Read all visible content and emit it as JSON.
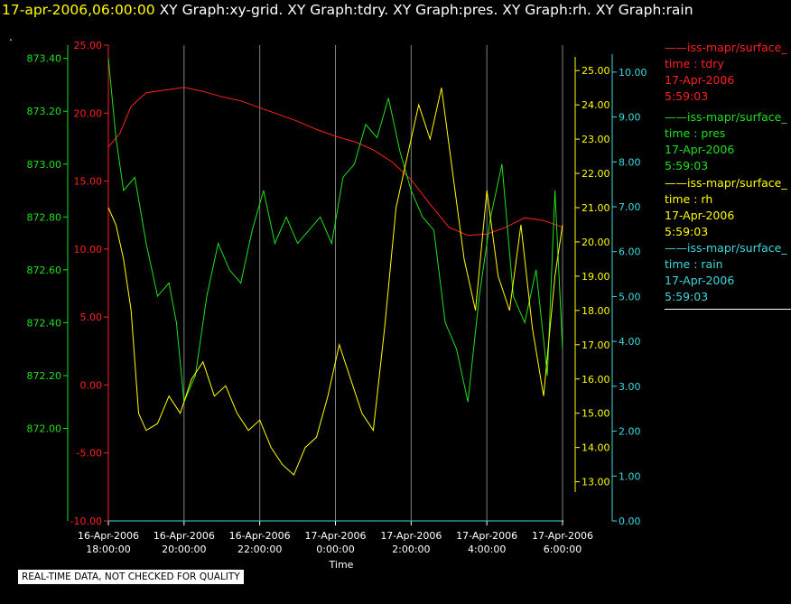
{
  "title": {
    "timestamp": "17-apr-2006,06:00:00",
    "graphs": "XY Graph:xy-grid.  XY Graph:tdry.  XY Graph:pres.  XY Graph:rh.  XY Graph:rain"
  },
  "subtitle_dot": ".",
  "notice": "REAL-TIME DATA, NOT CHECKED FOR QUALITY",
  "legend": [
    {
      "name": "iss-mapr/surface_",
      "line1": "time : tdry",
      "line2": "17-Apr-2006",
      "line3": "5:59:03",
      "color": "#ff2020"
    },
    {
      "name": "iss-mapr/surface_",
      "line1": "time : pres",
      "line2": "17-Apr-2006",
      "line3": "5:59:03",
      "color": "#20e020"
    },
    {
      "name": "iss-mapr/surface_",
      "line1": "time : rh",
      "line2": "17-Apr-2006",
      "line3": "5:59:03",
      "color": "#ffff00"
    },
    {
      "name": "iss-mapr/surface_",
      "line1": "time : rain",
      "line2": "17-Apr-2006",
      "line3": "5:59:03",
      "color": "#40d8d8"
    }
  ],
  "chart_data": {
    "type": "line",
    "xlabel": "Time",
    "x_ticks": [
      {
        "date": "16-Apr-2006",
        "time": "18:00:00",
        "hour": 0
      },
      {
        "date": "16-Apr-2006",
        "time": "20:00:00",
        "hour": 2
      },
      {
        "date": "16-Apr-2006",
        "time": "22:00:00",
        "hour": 4
      },
      {
        "date": "17-Apr-2006",
        "time": "0:00:00",
        "hour": 6
      },
      {
        "date": "17-Apr-2006",
        "time": "2:00:00",
        "hour": 8
      },
      {
        "date": "17-Apr-2006",
        "time": "4:00:00",
        "hour": 10
      },
      {
        "date": "17-Apr-2006",
        "time": "6:00:00",
        "hour": 12
      }
    ],
    "x_range_hours": [
      0,
      12
    ],
    "grid": "vertical",
    "axes": [
      {
        "id": "pres",
        "color": "#20e020",
        "ylim": [
          871.65,
          873.45
        ],
        "ticks": [
          "872.00",
          "872.20",
          "872.40",
          "872.60",
          "872.80",
          "873.00",
          "873.20",
          "873.40"
        ]
      },
      {
        "id": "tdry",
        "color": "#ff2020",
        "ylim": [
          -10,
          25
        ],
        "ticks": [
          "-10.00",
          "-5.00",
          "0.00",
          "5.00",
          "10.00",
          "15.00",
          "20.00",
          "25.00"
        ]
      },
      {
        "id": "rh",
        "color": "#ffff00",
        "ylim": [
          12.7,
          25.4
        ],
        "ticks": [
          "13.00",
          "14.00",
          "15.00",
          "16.00",
          "17.00",
          "18.00",
          "19.00",
          "20.00",
          "21.00",
          "22.00",
          "23.00",
          "24.00",
          "25.00"
        ]
      },
      {
        "id": "rain",
        "color": "#40d8d8",
        "ylim": [
          0,
          10.4
        ],
        "ticks": [
          "0.00",
          "1.00",
          "2.00",
          "3.00",
          "4.00",
          "5.00",
          "6.00",
          "7.00",
          "8.00",
          "9.00",
          "10.00"
        ]
      }
    ],
    "series": [
      {
        "id": "tdry",
        "axis": "tdry",
        "color": "#ff2020",
        "x": [
          0,
          0.3,
          0.6,
          1,
          1.5,
          2,
          2.5,
          3,
          3.5,
          4,
          4.5,
          5,
          5.5,
          6,
          6.5,
          7,
          7.5,
          8,
          8.5,
          9,
          9.5,
          10,
          10.5,
          11,
          11.5,
          12
        ],
        "y": [
          17.5,
          18.5,
          20.5,
          21.5,
          21.7,
          21.9,
          21.6,
          21.2,
          20.9,
          20.4,
          19.9,
          19.4,
          18.8,
          18.3,
          17.9,
          17.3,
          16.4,
          15.1,
          13.3,
          11.6,
          11.0,
          11.1,
          11.6,
          12.3,
          12.1,
          11.6
        ]
      },
      {
        "id": "pres",
        "axis": "pres",
        "color": "#20e020",
        "x": [
          0,
          0.2,
          0.4,
          0.7,
          1,
          1.3,
          1.6,
          1.8,
          2,
          2.3,
          2.6,
          2.9,
          3.2,
          3.5,
          3.8,
          4.1,
          4.4,
          4.7,
          5,
          5.3,
          5.6,
          5.9,
          6.2,
          6.5,
          6.8,
          7.1,
          7.4,
          7.7,
          8,
          8.3,
          8.6,
          8.9,
          9.2,
          9.5,
          9.8,
          10.1,
          10.4,
          10.7,
          11,
          11.3,
          11.6,
          11.8,
          12
        ],
        "y": [
          873.4,
          873.1,
          872.9,
          872.95,
          872.7,
          872.5,
          872.55,
          872.4,
          872.1,
          872.2,
          872.5,
          872.7,
          872.6,
          872.55,
          872.75,
          872.9,
          872.7,
          872.8,
          872.7,
          872.75,
          872.8,
          872.7,
          872.95,
          873.0,
          873.15,
          873.1,
          873.25,
          873.05,
          872.9,
          872.8,
          872.75,
          872.4,
          872.3,
          872.1,
          872.5,
          872.8,
          873.0,
          872.5,
          872.4,
          872.6,
          872.2,
          872.9,
          872.3
        ]
      },
      {
        "id": "rh",
        "axis": "rh",
        "color": "#ffff00",
        "x": [
          0,
          0.2,
          0.4,
          0.6,
          0.8,
          1,
          1.3,
          1.6,
          1.9,
          2.2,
          2.5,
          2.8,
          3.1,
          3.4,
          3.7,
          4,
          4.3,
          4.6,
          4.9,
          5.2,
          5.5,
          5.8,
          6.1,
          6.4,
          6.7,
          7,
          7.3,
          7.6,
          7.9,
          8.2,
          8.5,
          8.8,
          9.1,
          9.4,
          9.7,
          10,
          10.3,
          10.6,
          10.9,
          11.2,
          11.5,
          11.8,
          12
        ],
        "y": [
          21.0,
          20.5,
          19.5,
          18.0,
          15.0,
          14.5,
          14.7,
          15.5,
          15.0,
          16.0,
          16.5,
          15.5,
          15.8,
          15.0,
          14.5,
          14.8,
          14.0,
          13.5,
          13.2,
          14.0,
          14.3,
          15.5,
          17.0,
          16.0,
          15.0,
          14.5,
          17.5,
          21.0,
          22.5,
          24.0,
          23.0,
          24.5,
          22.0,
          19.5,
          18.0,
          21.5,
          19.0,
          18.0,
          20.5,
          17.5,
          15.5,
          19.0,
          20.5
        ]
      },
      {
        "id": "rain",
        "axis": "rain",
        "color": "#40d8d8",
        "x": [
          0,
          12
        ],
        "y": [
          0.0,
          0.0
        ]
      }
    ]
  }
}
